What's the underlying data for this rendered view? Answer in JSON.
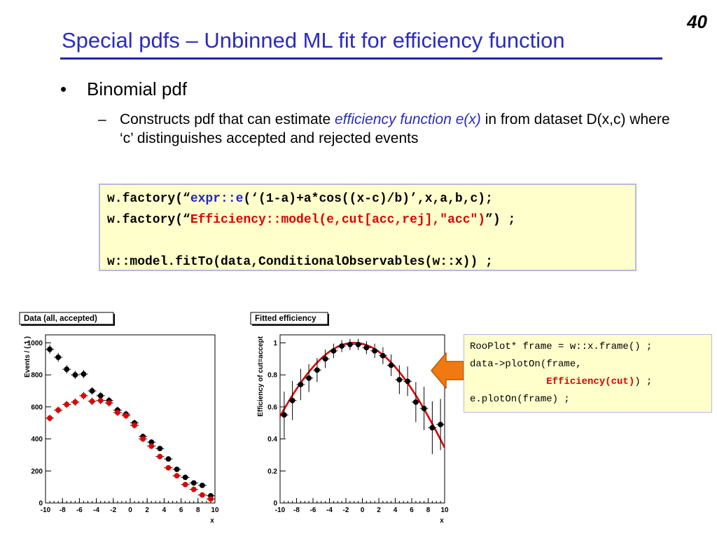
{
  "slide": {
    "number": "40",
    "title": "Special pdfs – Unbinned ML fit for efficiency function",
    "bullet_marker": "•",
    "bullet": "Binomial pdf",
    "sub_marker": "–",
    "sub_text_1": "Constructs pdf that can estimate ",
    "sub_emphasis": "efficiency function e(x)",
    "sub_text_2": " in from dataset D(x,c) where ‘c’ distinguishes accepted and rejected events"
  },
  "code": {
    "l1_a": "w.factory(“",
    "l1_b": "expr::e",
    "l1_c": "(‘(1-a)+a*cos((x-c)/b)’,x,a,b,c);",
    "l2_a": "w.factory(“",
    "l2_b": "Efficiency::model(e,cut[acc,rej],\"acc\")",
    "l2_c": "”) ;",
    "l3": "w::model.fitTo(data,ConditionalObservables(w::x)) ;"
  },
  "snippet": {
    "l1": "RooPlot* frame = w::x.frame() ;",
    "l2": "data->plotOn(frame,",
    "l3_indent": "             ",
    "l3_red": "Efficiency(cut)",
    "l3_tail": ") ;",
    "l4": "e.plotOn(frame) ;"
  },
  "colors": {
    "title_blue": "#2b2bbf",
    "code_background": "#ffffcc",
    "arrow_orange": "#f07a10",
    "series_black": "#000000",
    "series_red": "#e00000"
  },
  "chart_data": [
    {
      "type": "scatter",
      "title": "Data (all, accepted)",
      "xlabel": "x",
      "ylabel": "Events / ( 1 )",
      "xlim": [
        -10,
        10
      ],
      "ylim": [
        0,
        1050
      ],
      "xticks": [
        -10,
        -8,
        -6,
        -4,
        -2,
        0,
        2,
        4,
        6,
        8,
        10
      ],
      "yticks": [
        0,
        200,
        400,
        600,
        800,
        1000
      ],
      "x": [
        -9.5,
        -8.5,
        -7.5,
        -6.5,
        -5.5,
        -4.5,
        -3.5,
        -2.5,
        -1.5,
        -0.5,
        0.5,
        1.5,
        2.5,
        3.5,
        4.5,
        5.5,
        6.5,
        7.5,
        8.5,
        9.5
      ],
      "series": [
        {
          "values": [
            960,
            910,
            835,
            800,
            805,
            700,
            670,
            640,
            580,
            555,
            500,
            415,
            380,
            340,
            275,
            210,
            160,
            125,
            110,
            45
          ],
          "color": "#000000"
        },
        {
          "values": [
            530,
            580,
            615,
            630,
            670,
            635,
            640,
            625,
            565,
            545,
            485,
            400,
            355,
            290,
            220,
            170,
            115,
            85,
            50,
            25
          ],
          "color": "#e00000"
        }
      ],
      "error_bars": true
    },
    {
      "type": "scatter",
      "title": "Fitted efficiency",
      "xlabel": "x",
      "ylabel": "Efficiency of cut=accept",
      "xlim": [
        -10,
        10
      ],
      "ylim": [
        0,
        1.05
      ],
      "xticks": [
        -10,
        -8,
        -6,
        -4,
        -2,
        0,
        2,
        4,
        6,
        8,
        10
      ],
      "yticks": [
        0,
        0.2,
        0.4,
        0.6,
        0.8,
        1
      ],
      "ytick_labels": [
        "0",
        "0.2",
        "0.4",
        "0.6",
        "0.8",
        "1"
      ],
      "x": [
        -9.5,
        -8.5,
        -7.5,
        -6.5,
        -5.5,
        -4.5,
        -3.5,
        -2.5,
        -1.5,
        -0.5,
        0.5,
        1.5,
        2.5,
        3.5,
        4.5,
        5.5,
        6.5,
        7.5,
        8.5,
        9.5
      ],
      "series": [
        {
          "values": [
            0.55,
            0.64,
            0.74,
            0.78,
            0.83,
            0.9,
            0.95,
            0.98,
            0.99,
            0.99,
            0.97,
            0.95,
            0.92,
            0.86,
            0.77,
            0.76,
            0.63,
            0.59,
            0.47,
            0.49
          ],
          "color": "#000000"
        }
      ],
      "fit_curve": {
        "function": "(1-a)+a*cos((x-c)/b)",
        "a": 0.9,
        "b": 8.5,
        "c": -1,
        "color": "#e00000"
      },
      "error_bars": true
    }
  ]
}
